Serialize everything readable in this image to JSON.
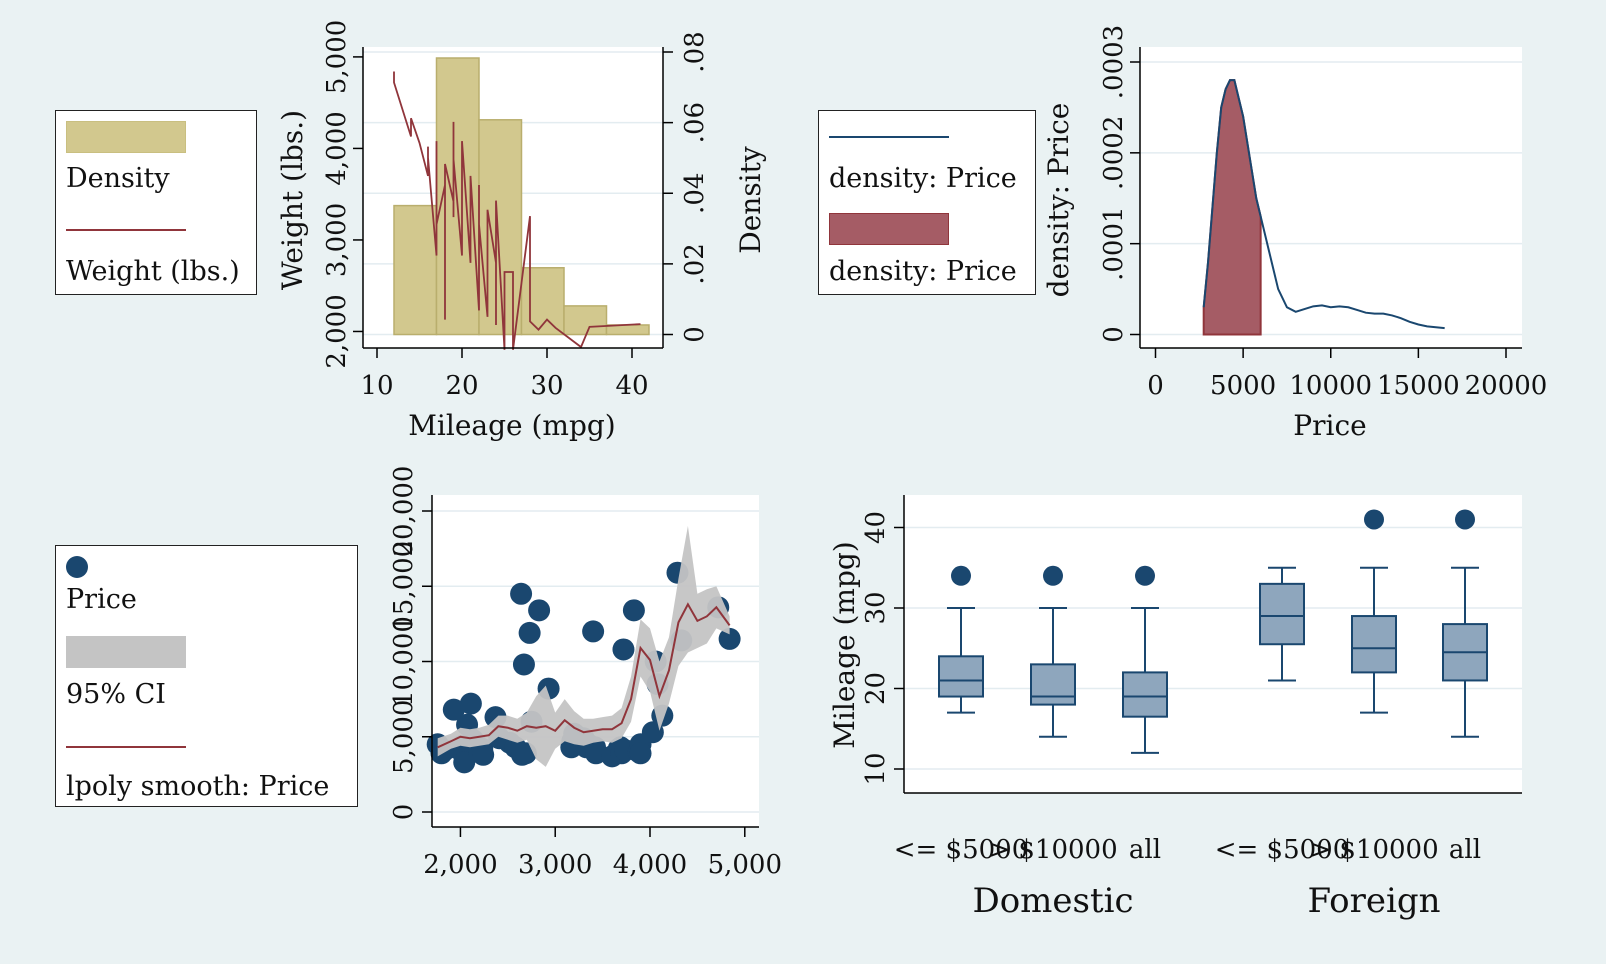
{
  "colors": {
    "background": "#eaf2f3",
    "plot_bg": "#ffffff",
    "navy": "#1a476f",
    "maroon": "#90353b",
    "khaki": "#d2c88e",
    "khaki_edge": "#b9ae6d",
    "ci_gray": "#c4c4c4",
    "box_fill": "#8ea6bd",
    "grid": "#e3ecf0"
  },
  "legends": {
    "hist": {
      "density": "Density",
      "weight": "Weight (lbs.)"
    },
    "kdens": {
      "line": "density: Price",
      "area": "density: Price"
    },
    "lpoly": {
      "price": "Price",
      "ci": "95% CI",
      "smooth": "lpoly smooth: Price"
    }
  },
  "chart_data": [
    {
      "id": "hist",
      "type": "bar",
      "title": "",
      "xlabel": "Mileage (mpg)",
      "ylabel": "Weight (lbs.)",
      "y2label": "Density",
      "xlim": [
        10,
        42
      ],
      "ylim": [
        1650,
        5200
      ],
      "y2lim": [
        0,
        0.08
      ],
      "xticks": [
        10,
        20,
        30,
        40
      ],
      "yticks": [
        2000,
        3000,
        4000,
        5000
      ],
      "ytick_labels": [
        "2,000",
        "3,000",
        "4,000",
        "5,000"
      ],
      "y2ticks": [
        0,
        0.02,
        0.04,
        0.06,
        0.08
      ],
      "y2tick_labels": [
        "0",
        ".02",
        ".04",
        ".06",
        ".08"
      ],
      "histogram": {
        "name": "Density",
        "bin_edges": [
          12,
          17,
          22,
          27,
          32,
          37,
          42
        ],
        "density": [
          0.0365,
          0.0783,
          0.0608,
          0.0189,
          0.0081,
          0.0027
        ]
      },
      "line": {
        "name": "Weight (lbs.)",
        "x": [
          12,
          12,
          14,
          14,
          15,
          16,
          16,
          16,
          17,
          17,
          17,
          18,
          18,
          18,
          18,
          18,
          19,
          19,
          19,
          19,
          19,
          20,
          20,
          20,
          21,
          21,
          21,
          22,
          22,
          22,
          23,
          23,
          24,
          24,
          24,
          25,
          25,
          26,
          26,
          28,
          28,
          29,
          30,
          31,
          34,
          35,
          41
        ],
        "y": [
          4840,
          4720,
          4130,
          4330,
          4060,
          3700,
          4020,
          3900,
          2830,
          4080,
          3170,
          3600,
          3670,
          2130,
          3690,
          3830,
          3420,
          4290,
          3250,
          3740,
          3880,
          2830,
          3900,
          4080,
          2750,
          3690,
          3700,
          2230,
          3600,
          3170,
          2160,
          3330,
          2750,
          2070,
          3430,
          1800,
          2650,
          2650,
          1800,
          3260,
          2110,
          2020,
          2130,
          2040,
          1830,
          2050,
          2080
        ]
      }
    },
    {
      "id": "kdens",
      "type": "area",
      "title": "",
      "xlabel": "Price",
      "ylabel": "density: Price",
      "xlim": [
        0,
        20000
      ],
      "ylim": [
        0,
        0.0003
      ],
      "xticks": [
        0,
        5000,
        10000,
        15000,
        20000
      ],
      "xtick_labels": [
        "0",
        "5000",
        "10000",
        "15000",
        "20000"
      ],
      "yticks": [
        0,
        0.0001,
        0.0002,
        0.0003
      ],
      "ytick_labels": [
        "0",
        ".0001",
        ".0002",
        ".0003"
      ],
      "x": [
        2750,
        3000,
        3250,
        3500,
        3750,
        4000,
        4250,
        4500,
        4750,
        5000,
        5250,
        5500,
        5750,
        6000,
        6500,
        7000,
        7500,
        8000,
        8500,
        9000,
        9500,
        10000,
        10500,
        11000,
        11500,
        12000,
        12500,
        13000,
        13500,
        14000,
        14500,
        15000,
        15500,
        16000,
        16500
      ],
      "y": [
        3e-05,
        8e-05,
        0.00014,
        0.0002,
        0.00025,
        0.00027,
        0.00028,
        0.00028,
        0.00026,
        0.00024,
        0.00021,
        0.00018,
        0.00015,
        0.00013,
        9e-05,
        5e-05,
        3e-05,
        2.5e-05,
        2.8e-05,
        3.1e-05,
        3.2e-05,
        3e-05,
        3.1e-05,
        3e-05,
        2.7e-05,
        2.4e-05,
        2.3e-05,
        2.3e-05,
        2.1e-05,
        1.8e-05,
        1.4e-05,
        1.1e-05,
        9e-06,
        8e-06,
        7e-06
      ],
      "shade_range": [
        2750,
        6000
      ]
    },
    {
      "id": "lpoly",
      "type": "scatter",
      "title": "",
      "xlabel": "",
      "ylabel": "",
      "xlim": [
        1700,
        5150
      ],
      "ylim": [
        -1000,
        21000
      ],
      "xticks": [
        2000,
        3000,
        4000,
        5000
      ],
      "xtick_labels": [
        "2,000",
        "3,000",
        "4,000",
        "5,000"
      ],
      "yticks": [
        0,
        5000,
        10000,
        15000,
        20000
      ],
      "ytick_labels": [
        "0",
        "5,000",
        "10,000",
        "15,000",
        "20,000"
      ],
      "points_x": [
        1760,
        1800,
        1830,
        1930,
        1980,
        2020,
        2040,
        2070,
        2110,
        2130,
        2160,
        2200,
        2230,
        2240,
        2370,
        2410,
        2520,
        2580,
        2640,
        2650,
        2670,
        2690,
        2730,
        2750,
        2830,
        2930,
        3170,
        3180,
        3200,
        3300,
        3330,
        3350,
        3400,
        3420,
        3430,
        3600,
        3670,
        3690,
        3700,
        3720,
        3740,
        3830,
        3880,
        3900,
        3900,
        4030,
        4060,
        4080,
        4130,
        4290,
        4330,
        4720,
        4840
      ],
      "points_y": [
        4500,
        3900,
        4100,
        6800,
        4200,
        4400,
        3300,
        5800,
        7200,
        4800,
        4600,
        4000,
        4200,
        3800,
        6300,
        4900,
        4600,
        4300,
        14500,
        3800,
        9800,
        3900,
        11900,
        6000,
        13400,
        8200,
        4300,
        4700,
        5200,
        4900,
        4300,
        4500,
        12000,
        4300,
        3900,
        3700,
        4200,
        4300,
        3900,
        10800,
        4100,
        13400,
        4000,
        4500,
        3900,
        5300,
        10000,
        8500,
        6400,
        15900,
        11400,
        13600,
        11500
      ],
      "smooth_x": [
        1760,
        1900,
        2000,
        2100,
        2200,
        2300,
        2400,
        2500,
        2600,
        2700,
        2800,
        2900,
        3000,
        3100,
        3200,
        3300,
        3400,
        3500,
        3600,
        3700,
        3800,
        3900,
        4000,
        4100,
        4200,
        4300,
        4400,
        4500,
        4600,
        4700,
        4840
      ],
      "smooth_y": [
        4300,
        4700,
        5000,
        4900,
        5000,
        5100,
        5700,
        5600,
        5400,
        5700,
        5600,
        5700,
        5400,
        6100,
        5600,
        5300,
        5400,
        5500,
        5500,
        5900,
        7500,
        10900,
        10100,
        7700,
        9400,
        12600,
        13800,
        12700,
        13000,
        13600,
        12400
      ],
      "ci_low": [
        3700,
        4200,
        4400,
        4300,
        4400,
        4500,
        5000,
        4800,
        4600,
        4800,
        3500,
        3000,
        4200,
        4700,
        4500,
        4400,
        4600,
        4700,
        4600,
        4900,
        6000,
        9000,
        8000,
        5400,
        7200,
        9700,
        10600,
        10900,
        11200,
        12200,
        11800
      ],
      "ci_high": [
        4900,
        5200,
        5600,
        5500,
        5600,
        5800,
        6400,
        6400,
        6200,
        6600,
        7700,
        8400,
        6600,
        7500,
        6700,
        6200,
        6200,
        6300,
        6400,
        6900,
        9000,
        12800,
        12200,
        10000,
        11600,
        15500,
        19000,
        14500,
        14800,
        15000,
        13000
      ]
    },
    {
      "id": "box",
      "type": "box",
      "title": "",
      "ylabel": "Mileage (mpg)",
      "ylim": [
        5,
        45
      ],
      "yticks": [
        10,
        20,
        30,
        40
      ],
      "groups": [
        {
          "label": "Domestic",
          "boxes": [
            {
              "label": "<= $5000",
              "min": 17,
              "q1": 19,
              "median": 21,
              "q3": 24,
              "max": 30,
              "outliers": [
                34
              ]
            },
            {
              "label": "> $10000",
              "min": 14,
              "q1": 18,
              "median": 19,
              "q3": 23,
              "max": 30,
              "outliers": [
                34
              ]
            },
            {
              "label": "all",
              "min": 12,
              "q1": 16.5,
              "median": 19,
              "q3": 22,
              "max": 30,
              "outliers": [
                34
              ]
            }
          ]
        },
        {
          "label": "Foreign",
          "boxes": [
            {
              "label": "<= $5000",
              "min": 21,
              "q1": 25.5,
              "median": 29,
              "q3": 33,
              "max": 35,
              "outliers": []
            },
            {
              "label": "> $10000",
              "min": 17,
              "q1": 22,
              "median": 25,
              "q3": 29,
              "max": 35,
              "outliers": [
                41
              ]
            },
            {
              "label": "all",
              "min": 14,
              "q1": 21,
              "median": 24.5,
              "q3": 28,
              "max": 35,
              "outliers": [
                41
              ]
            }
          ]
        }
      ]
    }
  ]
}
